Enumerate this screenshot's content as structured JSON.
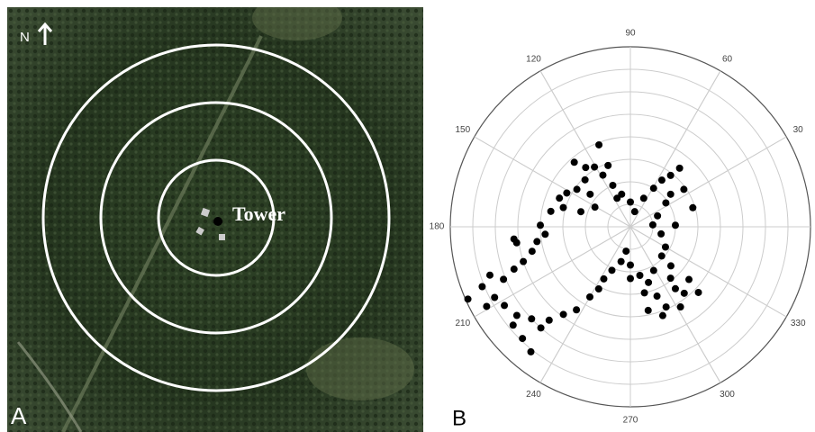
{
  "panel_a": {
    "label": "A",
    "north": "N",
    "site": "Tower"
  },
  "chart_data": {
    "type": "polar-scatter",
    "label": "B",
    "color": "#000000",
    "thetaticks": [
      30,
      60,
      90,
      120,
      150,
      180,
      210,
      240,
      270,
      300,
      330
    ],
    "rlim": [
      0,
      8
    ],
    "rgrid": [
      1,
      2,
      3,
      4,
      5,
      6,
      7,
      8
    ],
    "grid": true,
    "theta": [
      111,
      131,
      121,
      118,
      134,
      145,
      158,
      164,
      163,
      151,
      113,
      105,
      90,
      74,
      115,
      141,
      152,
      169,
      179,
      185,
      189,
      194,
      110,
      127,
      50,
      52,
      56,
      59,
      65,
      39,
      35,
      17,
      34,
      22,
      347,
      5,
      330,
      317,
      316,
      2,
      198,
      200,
      202.5,
      199,
      202,
      209,
      207.5,
      204,
      212,
      218,
      223,
      228.5,
      226,
      220,
      231.5,
      229,
      232.6,
      237,
      240,
      243,
      188,
      186,
      247,
      255,
      270,
      281,
      288,
      291,
      294,
      306,
      309,
      316,
      318,
      308,
      298,
      270,
      243,
      260,
      282,
      290,
      282,
      302
    ],
    "r": [
      3.9,
      3.8,
      3.1,
      2.6,
      2.9,
      2.9,
      3.4,
      3.1,
      2.3,
      1.8,
      2.0,
      1.5,
      1.1,
      0.7,
      1.4,
      2.3,
      3.2,
      3.6,
      4.0,
      3.8,
      4.2,
      4.5,
      2.9,
      3.3,
      3.4,
      2.9,
      2.5,
      2.0,
      1.4,
      2.3,
      2.9,
      2.9,
      1.9,
      1.3,
      1.4,
      1.0,
      1.8,
      1.9,
      2.5,
      2.0,
      5.0,
      5.5,
      6.1,
      6.6,
      7.1,
      7.3,
      6.8,
      7.9,
      6.6,
      6.4,
      6.0,
      6.0,
      6.9,
      6.8,
      7.1,
      5.5,
      4.9,
      4.4,
      3.6,
      3.1,
      5.1,
      5.2,
      2.1,
      1.6,
      1.7,
      2.2,
      2.6,
      3.3,
      3.9,
      3.4,
      3.8,
      4.2,
      3.5,
      2.9,
      2.2,
      2.3,
      2.6,
      1.1,
      3.0,
      4.2,
      3.8,
      4.2
    ]
  }
}
